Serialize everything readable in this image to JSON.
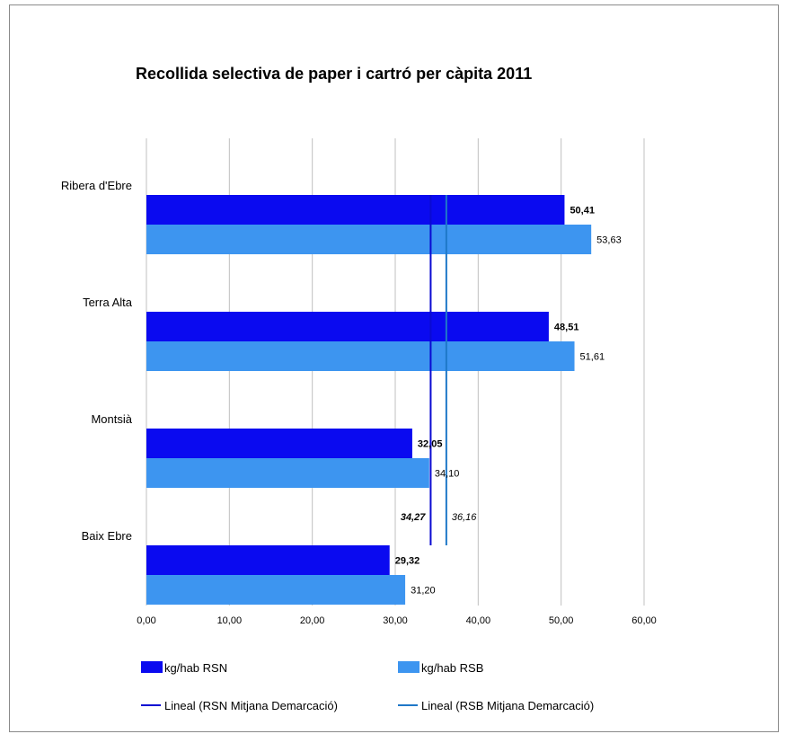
{
  "chart_data": {
    "type": "bar",
    "orientation": "horizontal",
    "title": "Recollida selectiva de paper i cartró per càpita 2011",
    "categories": [
      "Ribera d'Ebre",
      "Terra Alta",
      "Montsià",
      "Baix Ebre"
    ],
    "series": [
      {
        "name": "kg/hab RSN",
        "values": [
          50.41,
          48.51,
          32.05,
          29.32
        ],
        "labels": [
          "50,41",
          "48,51",
          "32,05",
          "29,32"
        ],
        "color": "#0a0af0",
        "label_style": "bold"
      },
      {
        "name": "kg/hab RSB",
        "values": [
          53.63,
          51.61,
          34.1,
          31.2
        ],
        "labels": [
          "53,63",
          "51,61",
          "34,10",
          "31,20"
        ],
        "color": "#3d95f0",
        "label_style": "normal"
      }
    ],
    "reference_lines": [
      {
        "name": "Lineal (RSN Mitjana Demarcació)",
        "value": 34.27,
        "label": "34,27",
        "color": "#0a0ad2",
        "label_style": "bold-italic"
      },
      {
        "name": "Lineal (RSB Mitjana Demarcació)",
        "value": 36.16,
        "label": "36,16",
        "color": "#1f78c8",
        "label_style": "italic"
      }
    ],
    "xlim": [
      0,
      60
    ],
    "xticks": [
      0,
      10,
      20,
      30,
      40,
      50,
      60
    ],
    "xtick_labels": [
      "0,00",
      "10,00",
      "20,00",
      "30,00",
      "40,00",
      "50,00",
      "60,00"
    ],
    "grid": "vertical",
    "legend_position": "bottom",
    "gridline_color": "#c0c0c0"
  }
}
